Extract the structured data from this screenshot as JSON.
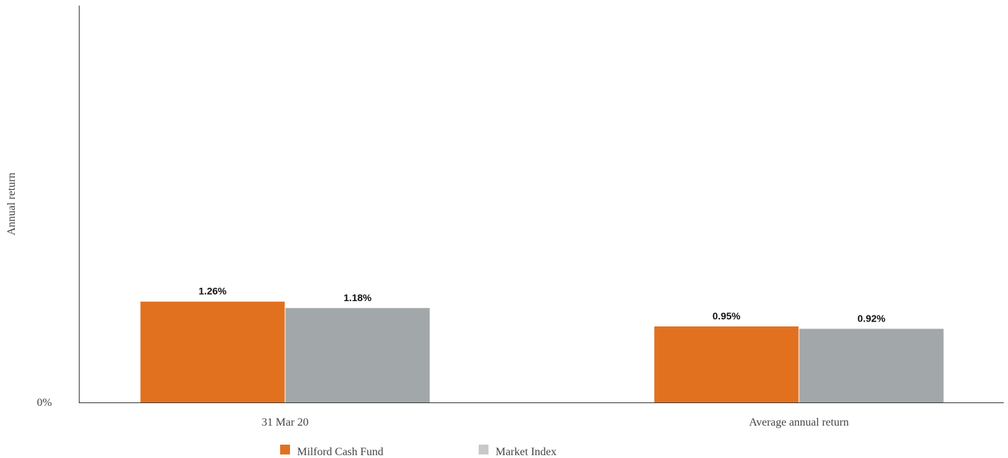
{
  "chart_data": {
    "type": "bar",
    "title": "",
    "xlabel": "",
    "ylabel": "Annual return",
    "categories": [
      "31 Mar 20",
      "Average annual return"
    ],
    "series": [
      {
        "name": "Milford Cash Fund",
        "values": [
          1.26,
          0.95
        ],
        "labels": [
          "1.26%",
          "0.95%"
        ],
        "color": "#e2711f"
      },
      {
        "name": "Market Index",
        "values": [
          1.18,
          0.92
        ],
        "labels": [
          "1.18%",
          "0.92%"
        ],
        "color": "#a2a8aa"
      }
    ],
    "y_ticks": [
      {
        "value": 0,
        "label": "0%"
      }
    ],
    "ylim": [
      0,
      4.96
    ],
    "grid": false,
    "legend_position": "bottom-center",
    "legend_swatch_colors": [
      "#e2711f",
      "#c8c9cb"
    ]
  }
}
